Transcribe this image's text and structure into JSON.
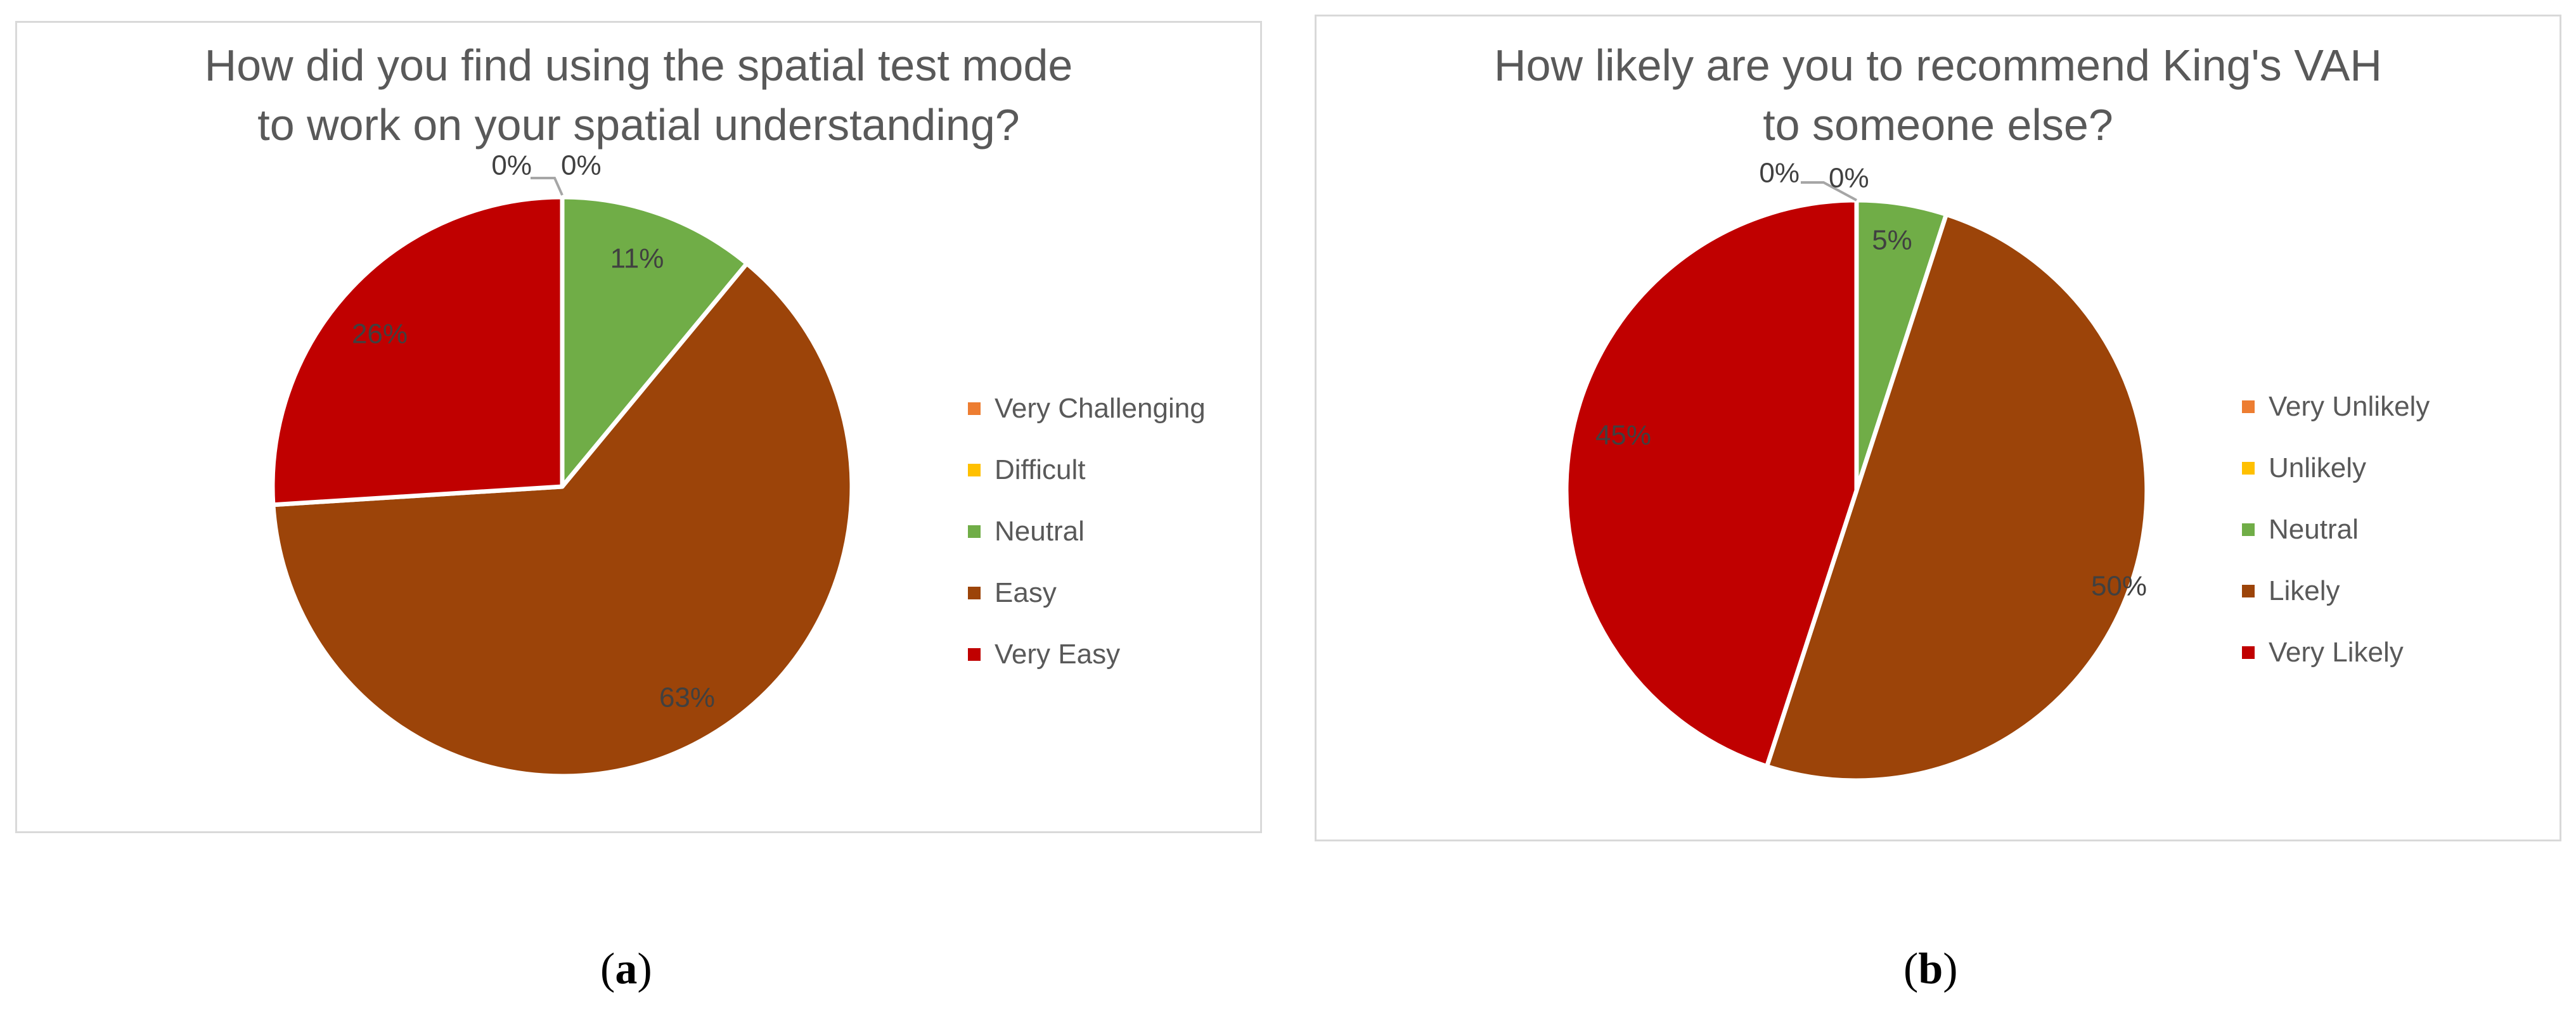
{
  "chart_data": [
    {
      "type": "pie",
      "panel_label": "a",
      "title": [
        "How did you find using the spatial test mode",
        "to work on your spatial understanding?"
      ],
      "categories": [
        "Very Challenging",
        "Difficult",
        "Neutral",
        "Easy",
        "Very Easy"
      ],
      "values": [
        0,
        0,
        11,
        63,
        26
      ],
      "data_labels": [
        "0%",
        "0%",
        "11%",
        "63%",
        "26%"
      ],
      "colors": [
        "#ED7D31",
        "#FFC000",
        "#70AD47",
        "#9C4409",
        "#C00000"
      ],
      "legend": "right"
    },
    {
      "type": "pie",
      "panel_label": "b",
      "title": [
        "How likely are you to recommend King's VAH",
        "to someone else?"
      ],
      "categories": [
        "Very Unlikely",
        "Unlikely",
        "Neutral",
        "Likely",
        "Very Likely"
      ],
      "values": [
        0,
        0,
        5,
        50,
        45
      ],
      "data_labels": [
        "0%",
        "0%",
        "5%",
        "50%",
        "45%"
      ],
      "colors": [
        "#ED7D31",
        "#FFC000",
        "#70AD47",
        "#9C4409",
        "#C00000"
      ],
      "legend": "right"
    }
  ],
  "sub_labels": [
    "a",
    "b"
  ]
}
